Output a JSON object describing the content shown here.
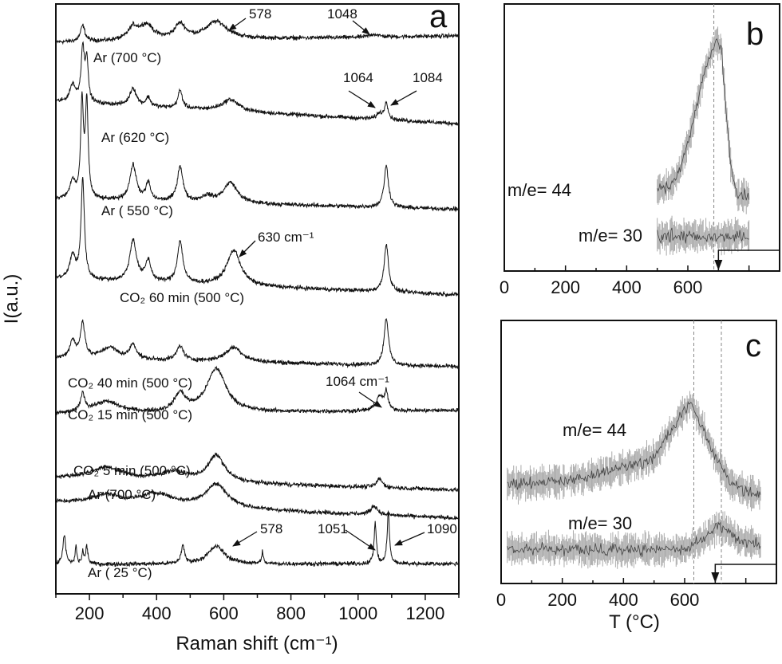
{
  "chart_data": [
    {
      "panel": "a",
      "type": "line",
      "panel_letter": "a",
      "xlabel": "Raman shift (cm⁻¹)",
      "ylabel": "I(a.u.)",
      "xlim": [
        100,
        1300
      ],
      "ylim": [
        0,
        100
      ],
      "xticks": [
        200,
        400,
        600,
        800,
        1000,
        1200
      ],
      "xtick_labels": [
        "200",
        "400",
        "600",
        "800",
        "1000",
        "1200"
      ],
      "grid": false,
      "series": [
        {
          "label": "Ar  (700 °C)",
          "baseline": [
            93.5,
            94.6
          ],
          "peaks": [
            [
              180,
              2.7,
              8
            ],
            [
              330,
              2,
              18
            ],
            [
              370,
              2.5,
              25
            ],
            [
              470,
              2.5,
              20
            ],
            [
              578,
              3,
              40
            ],
            [
              1048,
              0.5,
              15
            ]
          ]
        },
        {
          "label": "Ar  (620 °C)",
          "baseline": [
            83.4,
            79.7
          ],
          "peaks": [
            [
              150,
              3,
              10
            ],
            [
              180,
              9,
              6
            ],
            [
              192,
              7,
              5
            ],
            [
              330,
              3,
              12
            ],
            [
              375,
              1.5,
              8
            ],
            [
              470,
              3,
              8
            ],
            [
              620,
              2,
              30
            ],
            [
              1064,
              1,
              10
            ],
            [
              1084,
              3,
              6
            ]
          ]
        },
        {
          "label": "Ar  ( 550 °C)",
          "baseline": [
            66.9,
            65.2
          ],
          "peaks": [
            [
              150,
              3,
              10
            ],
            [
              178,
              16,
              5
            ],
            [
              192,
              16,
              5
            ],
            [
              330,
              6,
              12
            ],
            [
              375,
              3,
              8
            ],
            [
              470,
              6,
              10
            ],
            [
              550,
              1,
              20
            ],
            [
              620,
              3.5,
              25
            ],
            [
              1084,
              7,
              8
            ]
          ]
        },
        {
          "label": "CO₂ 60 min (500 °C)",
          "baseline": [
            53.4,
            50.7
          ],
          "peaks": [
            [
              150,
              4,
              10
            ],
            [
              180,
              17,
              6
            ],
            [
              330,
              7,
              12
            ],
            [
              375,
              3.5,
              10
            ],
            [
              470,
              7,
              10
            ],
            [
              630,
              6,
              25
            ],
            [
              1084,
              8,
              8
            ]
          ]
        },
        {
          "label": "CO₂ 40 min (500 °C)",
          "baseline": [
            39.9,
            38.5
          ],
          "peaks": [
            [
              150,
              3,
              10
            ],
            [
              180,
              6,
              8
            ],
            [
              260,
              2,
              30
            ],
            [
              330,
              2.5,
              12
            ],
            [
              470,
              2.5,
              12
            ],
            [
              630,
              2.5,
              30
            ],
            [
              1084,
              8,
              8
            ]
          ]
        },
        {
          "label": "CO₂ 15 min (500 °C)",
          "baseline": [
            30.4,
            31.1
          ],
          "peaks": [
            [
              180,
              3,
              8
            ],
            [
              250,
              2,
              50
            ],
            [
              470,
              3,
              20
            ],
            [
              578,
              7.4,
              35
            ],
            [
              1064,
              2.5,
              12
            ],
            [
              1084,
              3,
              6
            ]
          ]
        },
        {
          "label": "CO₂ 5 min  (500 °C)",
          "baseline": [
            19.6,
            17.6
          ],
          "peaks": [
            [
              250,
              2,
              60
            ],
            [
              450,
              1.5,
              50
            ],
            [
              578,
              4.5,
              30
            ],
            [
              1064,
              1.5,
              10
            ]
          ]
        },
        {
          "label": "Ar  (700 °C)",
          "baseline": [
            15.5,
            12.8
          ],
          "peaks": [
            [
              250,
              1.5,
              50
            ],
            [
              400,
              2,
              60
            ],
            [
              578,
              4,
              40
            ],
            [
              1048,
              1.5,
              12
            ]
          ]
        },
        {
          "label": "Ar  ( 25 °C)",
          "baseline": [
            5.0,
            5.1
          ],
          "peaks": [
            [
              125,
              5,
              5
            ],
            [
              160,
              3,
              3
            ],
            [
              180,
              2,
              3
            ],
            [
              192,
              3,
              4
            ],
            [
              478,
              3,
              6
            ],
            [
              578,
              3,
              30
            ],
            [
              715,
              2,
              3
            ],
            [
              1051,
              7,
              4
            ],
            [
              1090,
              9,
              4
            ]
          ]
        }
      ],
      "annotations": [
        "578",
        "1048",
        "1064",
        "1084",
        "630 cm⁻¹",
        "1064 cm⁻¹",
        "578",
        "1051",
        "1090"
      ]
    },
    {
      "panel": "b",
      "type": "line",
      "panel_letter": "b",
      "xlim": [
        0,
        900
      ],
      "ylim": [
        0,
        10
      ],
      "xticks": [
        0,
        200,
        400,
        600
      ],
      "xtick_labels": [
        "0",
        "200",
        "400",
        "600"
      ],
      "reference_lines": [
        685
      ],
      "series": [
        {
          "name": "m/e= 44",
          "points": [
            [
              500,
              3.0
            ],
            [
              550,
              3.3
            ],
            [
              575,
              3.8
            ],
            [
              600,
              4.8
            ],
            [
              625,
              6.0
            ],
            [
              650,
              7.3
            ],
            [
              675,
              8.1
            ],
            [
              690,
              8.6
            ],
            [
              710,
              8.4
            ],
            [
              725,
              6.0
            ],
            [
              740,
              4.0
            ],
            [
              760,
              2.8
            ],
            [
              800,
              2.8
            ]
          ]
        },
        {
          "name": "m/e= 30",
          "points": [
            [
              500,
              1.3
            ],
            [
              600,
              1.3
            ],
            [
              700,
              1.3
            ],
            [
              800,
              1.3
            ]
          ]
        }
      ]
    },
    {
      "panel": "c",
      "type": "line",
      "panel_letter": "c",
      "xlabel": "T (°C)",
      "xlim": [
        0,
        900
      ],
      "ylim": [
        0,
        10
      ],
      "xticks": [
        0,
        200,
        400,
        600
      ],
      "xtick_labels": [
        "0",
        "200",
        "400",
        "600"
      ],
      "reference_lines": [
        630,
        720
      ],
      "series": [
        {
          "name": "m/e= 44",
          "points": [
            [
              20,
              3.8
            ],
            [
              100,
              3.8
            ],
            [
              200,
              3.9
            ],
            [
              300,
              4.1
            ],
            [
              400,
              4.4
            ],
            [
              500,
              4.8
            ],
            [
              550,
              5.7
            ],
            [
              600,
              6.6
            ],
            [
              620,
              6.8
            ],
            [
              650,
              6.2
            ],
            [
              700,
              4.8
            ],
            [
              750,
              3.8
            ],
            [
              800,
              3.5
            ],
            [
              850,
              3.4
            ]
          ]
        },
        {
          "name": "m/e= 30",
          "points": [
            [
              20,
              1.3
            ],
            [
              200,
              1.3
            ],
            [
              400,
              1.25
            ],
            [
              600,
              1.3
            ],
            [
              650,
              1.6
            ],
            [
              700,
              2.1
            ],
            [
              720,
              2.15
            ],
            [
              760,
              1.8
            ],
            [
              800,
              1.6
            ],
            [
              850,
              1.4
            ]
          ]
        }
      ]
    }
  ]
}
